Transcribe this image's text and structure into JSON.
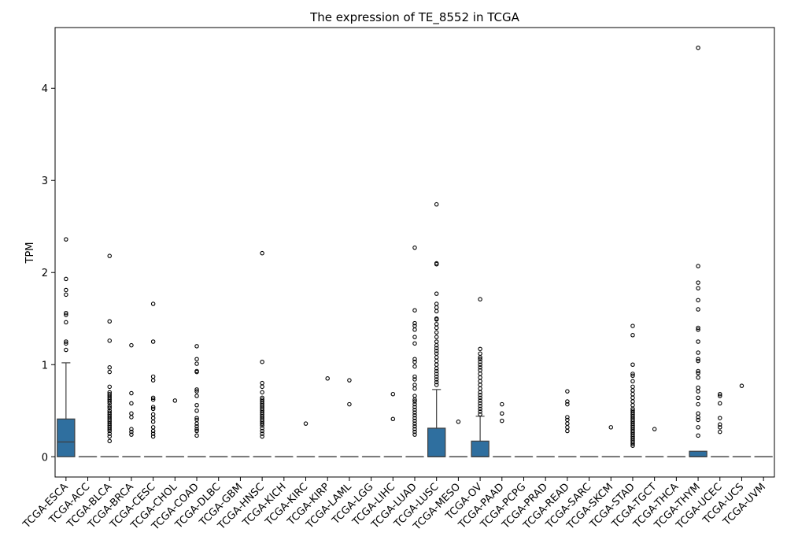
{
  "chart_data": {
    "type": "box",
    "title": "The expression of TE_8552 in TCGA",
    "xlabel": "",
    "ylabel": "TPM",
    "ylim": [
      -0.22,
      4.66
    ],
    "yticks": [
      0,
      1,
      2,
      3,
      4
    ],
    "grid": false,
    "legend": "none",
    "box_color": "#2f6f9f",
    "categories": [
      "TCGA-ESCA",
      "TCGA-ACC",
      "TCGA-BLCA",
      "TCGA-BRCA",
      "TCGA-CESC",
      "TCGA-CHOL",
      "TCGA-COAD",
      "TCGA-DLBC",
      "TCGA-GBM",
      "TCGA-HNSC",
      "TCGA-KICH",
      "TCGA-KIRC",
      "TCGA-KIRP",
      "TCGA-LAML",
      "TCGA-LGG",
      "TCGA-LIHC",
      "TCGA-LUAD",
      "TCGA-LUSC",
      "TCGA-MESO",
      "TCGA-OV",
      "TCGA-PAAD",
      "TCGA-PCPG",
      "TCGA-PRAD",
      "TCGA-READ",
      "TCGA-SARC",
      "TCGA-SKCM",
      "TCGA-STAD",
      "TCGA-TGCT",
      "TCGA-THCA",
      "TCGA-THYM",
      "TCGA-UCEC",
      "TCGA-UCS",
      "TCGA-UVM"
    ],
    "boxes": [
      {
        "q1": 0,
        "median": 0.16,
        "q3": 0.41,
        "whisker_low": 0,
        "whisker_high": 1.02,
        "outliers": [
          2.36,
          1.93,
          1.81,
          1.76,
          1.56,
          1.54,
          1.46,
          1.25,
          1.23,
          1.16
        ]
      },
      {
        "q1": 0,
        "median": 0,
        "q3": 0,
        "whisker_low": 0,
        "whisker_high": 0,
        "outliers": []
      },
      {
        "q1": 0,
        "median": 0,
        "q3": 0,
        "whisker_low": 0,
        "whisker_high": 0,
        "outliers": [
          2.18,
          1.47,
          1.26,
          0.97,
          0.92,
          0.76,
          0.7,
          0.68,
          0.66,
          0.64,
          0.62,
          0.6,
          0.58,
          0.55,
          0.53,
          0.5,
          0.48,
          0.46,
          0.44,
          0.42,
          0.4,
          0.38,
          0.36,
          0.34,
          0.32,
          0.3,
          0.28,
          0.25,
          0.22,
          0.17
        ]
      },
      {
        "q1": 0,
        "median": 0,
        "q3": 0,
        "whisker_low": 0,
        "whisker_high": 0,
        "outliers": [
          1.21,
          0.69,
          0.58,
          0.47,
          0.43,
          0.3,
          0.27,
          0.24
        ]
      },
      {
        "q1": 0,
        "median": 0,
        "q3": 0,
        "whisker_low": 0,
        "whisker_high": 0,
        "outliers": [
          1.66,
          1.25,
          0.87,
          0.83,
          0.64,
          0.62,
          0.54,
          0.52,
          0.46,
          0.42,
          0.38,
          0.32,
          0.28,
          0.25,
          0.22
        ]
      },
      {
        "q1": 0,
        "median": 0,
        "q3": 0,
        "whisker_low": 0,
        "whisker_high": 0,
        "outliers": [
          0.61
        ]
      },
      {
        "q1": 0,
        "median": 0,
        "q3": 0,
        "whisker_low": 0,
        "whisker_high": 0,
        "outliers": [
          1.2,
          1.06,
          1.01,
          0.93,
          0.92,
          0.73,
          0.71,
          0.66,
          0.56,
          0.5,
          0.42,
          0.4,
          0.36,
          0.33,
          0.3,
          0.28,
          0.23
        ]
      },
      {
        "q1": 0,
        "median": 0,
        "q3": 0,
        "whisker_low": 0,
        "whisker_high": 0,
        "outliers": []
      },
      {
        "q1": 0,
        "median": 0,
        "q3": 0,
        "whisker_low": 0,
        "whisker_high": 0,
        "outliers": []
      },
      {
        "q1": 0,
        "median": 0,
        "q3": 0,
        "whisker_low": 0,
        "whisker_high": 0,
        "outliers": [
          2.21,
          1.03,
          0.8,
          0.76,
          0.7,
          0.64,
          0.62,
          0.6,
          0.58,
          0.56,
          0.54,
          0.52,
          0.5,
          0.48,
          0.46,
          0.44,
          0.42,
          0.4,
          0.38,
          0.36,
          0.34,
          0.31,
          0.28,
          0.25,
          0.22
        ]
      },
      {
        "q1": 0,
        "median": 0,
        "q3": 0,
        "whisker_low": 0,
        "whisker_high": 0,
        "outliers": []
      },
      {
        "q1": 0,
        "median": 0,
        "q3": 0,
        "whisker_low": 0,
        "whisker_high": 0,
        "outliers": [
          0.36
        ]
      },
      {
        "q1": 0,
        "median": 0,
        "q3": 0,
        "whisker_low": 0,
        "whisker_high": 0,
        "outliers": [
          0.85
        ]
      },
      {
        "q1": 0,
        "median": 0,
        "q3": 0,
        "whisker_low": 0,
        "whisker_high": 0,
        "outliers": [
          0.83,
          0.57
        ]
      },
      {
        "q1": 0,
        "median": 0,
        "q3": 0,
        "whisker_low": 0,
        "whisker_high": 0,
        "outliers": []
      },
      {
        "q1": 0,
        "median": 0,
        "q3": 0,
        "whisker_low": 0,
        "whisker_high": 0,
        "outliers": [
          0.68,
          0.41
        ]
      },
      {
        "q1": 0,
        "median": 0,
        "q3": 0,
        "whisker_low": 0,
        "whisker_high": 0,
        "outliers": [
          2.27,
          1.59,
          1.45,
          1.42,
          1.38,
          1.3,
          1.23,
          1.06,
          1.03,
          0.98,
          0.87,
          0.84,
          0.78,
          0.74,
          0.66,
          0.62,
          0.6,
          0.57,
          0.54,
          0.51,
          0.48,
          0.45,
          0.42,
          0.39,
          0.36,
          0.33,
          0.3,
          0.27,
          0.24
        ]
      },
      {
        "q1": 0,
        "median": 0,
        "q3": 0.31,
        "whisker_low": 0,
        "whisker_high": 0.73,
        "outliers": [
          2.74,
          2.1,
          2.09,
          1.77,
          1.66,
          1.62,
          1.58,
          1.5,
          1.49,
          1.44,
          1.4,
          1.35,
          1.3,
          1.25,
          1.21,
          1.18,
          1.15,
          1.12,
          1.08,
          1.04,
          1.0,
          0.96,
          0.93,
          0.9,
          0.87,
          0.84,
          0.81,
          0.78
        ]
      },
      {
        "q1": 0,
        "median": 0,
        "q3": 0,
        "whisker_low": 0,
        "whisker_high": 0,
        "outliers": [
          0.38
        ]
      },
      {
        "q1": 0,
        "median": 0,
        "q3": 0.17,
        "whisker_low": 0,
        "whisker_high": 0.44,
        "outliers": [
          1.71,
          1.17,
          1.12,
          1.08,
          1.06,
          1.03,
          1.0,
          0.97,
          0.94,
          0.9,
          0.86,
          0.82,
          0.78,
          0.74,
          0.7,
          0.67,
          0.64,
          0.61,
          0.58,
          0.55,
          0.52,
          0.49,
          0.46
        ]
      },
      {
        "q1": 0,
        "median": 0,
        "q3": 0,
        "whisker_low": 0,
        "whisker_high": 0,
        "outliers": [
          0.57,
          0.47,
          0.39
        ]
      },
      {
        "q1": 0,
        "median": 0,
        "q3": 0,
        "whisker_low": 0,
        "whisker_high": 0,
        "outliers": []
      },
      {
        "q1": 0,
        "median": 0,
        "q3": 0,
        "whisker_low": 0,
        "whisker_high": 0,
        "outliers": []
      },
      {
        "q1": 0,
        "median": 0,
        "q3": 0,
        "whisker_low": 0,
        "whisker_high": 0,
        "outliers": [
          0.71,
          0.6,
          0.57,
          0.43,
          0.4,
          0.36,
          0.32,
          0.28
        ]
      },
      {
        "q1": 0,
        "median": 0,
        "q3": 0,
        "whisker_low": 0,
        "whisker_high": 0,
        "outliers": []
      },
      {
        "q1": 0,
        "median": 0,
        "q3": 0,
        "whisker_low": 0,
        "whisker_high": 0,
        "outliers": [
          0.32
        ]
      },
      {
        "q1": 0,
        "median": 0,
        "q3": 0,
        "whisker_low": 0,
        "whisker_high": 0,
        "outliers": [
          1.42,
          1.32,
          1.0,
          0.9,
          0.88,
          0.82,
          0.76,
          0.72,
          0.68,
          0.64,
          0.6,
          0.56,
          0.52,
          0.5,
          0.48,
          0.46,
          0.44,
          0.42,
          0.4,
          0.38,
          0.36,
          0.34,
          0.32,
          0.3,
          0.28,
          0.26,
          0.24,
          0.22,
          0.2,
          0.18,
          0.16,
          0.14,
          0.12
        ]
      },
      {
        "q1": 0,
        "median": 0,
        "q3": 0,
        "whisker_low": 0,
        "whisker_high": 0,
        "outliers": [
          0.3
        ]
      },
      {
        "q1": 0,
        "median": 0,
        "q3": 0,
        "whisker_low": 0,
        "whisker_high": 0,
        "outliers": []
      },
      {
        "q1": 0,
        "median": 0,
        "q3": 0.06,
        "whisker_low": 0,
        "whisker_high": 0.06,
        "outliers": [
          4.44,
          2.07,
          1.89,
          1.83,
          1.7,
          1.6,
          1.4,
          1.38,
          1.25,
          1.13,
          1.06,
          1.04,
          0.93,
          0.91,
          0.86,
          0.75,
          0.71,
          0.64,
          0.57,
          0.47,
          0.43,
          0.4,
          0.32,
          0.23
        ]
      },
      {
        "q1": 0,
        "median": 0,
        "q3": 0,
        "whisker_low": 0,
        "whisker_high": 0,
        "outliers": [
          0.68,
          0.66,
          0.58,
          0.42,
          0.35,
          0.32,
          0.27
        ]
      },
      {
        "q1": 0,
        "median": 0,
        "q3": 0,
        "whisker_low": 0,
        "whisker_high": 0,
        "outliers": [
          0.77
        ]
      },
      {
        "q1": 0,
        "median": 0,
        "q3": 0,
        "whisker_low": 0,
        "whisker_high": 0,
        "outliers": []
      }
    ]
  }
}
